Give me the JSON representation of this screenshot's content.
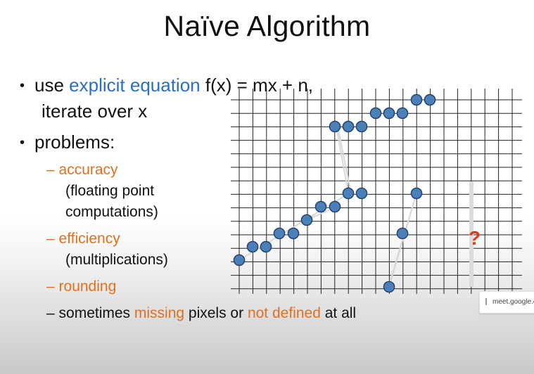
{
  "slide": {
    "title": "Naïve Algorithm",
    "bullet1": {
      "prefix": "use ",
      "highlight": "explicit equation",
      "rest": " f(x) = mx + n,",
      "line2": "iterate over x"
    },
    "bullet2": "problems:",
    "subitems": [
      {
        "label": "accuracy",
        "desc1": "(floating point",
        "desc2": "computations)"
      },
      {
        "label": "efficiency",
        "desc1": "(multiplications)"
      },
      {
        "label": "rounding"
      }
    ],
    "last": {
      "part1": "sometimes ",
      "missing": "missing",
      "part2": " pixels or ",
      "notdefined": "not defined",
      "part3": " at all"
    },
    "question_mark": "?"
  },
  "url_pill": {
    "text": "meet.google.c"
  },
  "colors": {
    "orange": "#e0701f",
    "blue": "#2a70c0",
    "pixel_fill": "#4a7fb8",
    "pixel_stroke": "#1f3e6a",
    "question": "#e33a1a"
  }
}
